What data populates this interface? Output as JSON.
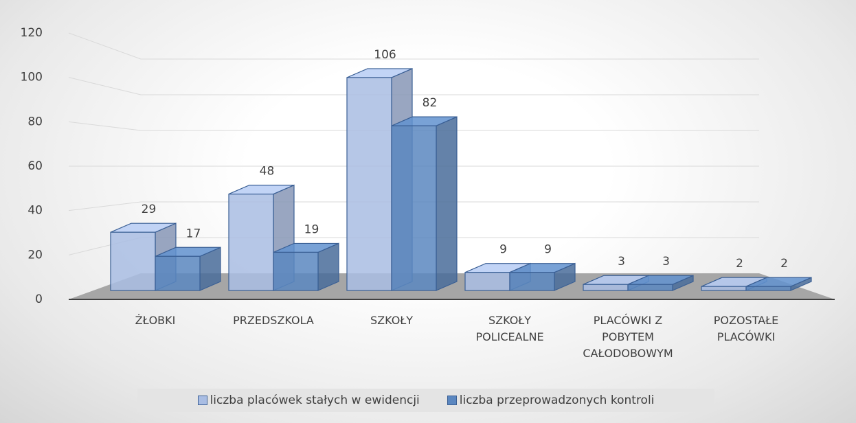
{
  "chart_data": {
    "type": "bar3d",
    "categories": [
      "ŻŁOBKI",
      "PRZEDSZKOLA",
      "SZKOŁY",
      "SZKOŁY POLICEALNE",
      "PLACÓWKI Z POBYTEM CAŁODOBOWYM",
      "POZOSTAŁE PLACÓWKI"
    ],
    "series": [
      {
        "name": "liczba placówek stałych w ewidencji",
        "color": "#a9bde3",
        "values": [
          29,
          48,
          106,
          9,
          3,
          2
        ]
      },
      {
        "name": "liczba przeprowadzonych kontroli",
        "color": "#5b87c0",
        "values": [
          17,
          19,
          82,
          9,
          3,
          2
        ]
      }
    ],
    "ylim": [
      0,
      120
    ],
    "yticks": [
      0,
      20,
      40,
      60,
      80,
      100,
      120
    ],
    "grid": true,
    "legend": "bottom"
  }
}
